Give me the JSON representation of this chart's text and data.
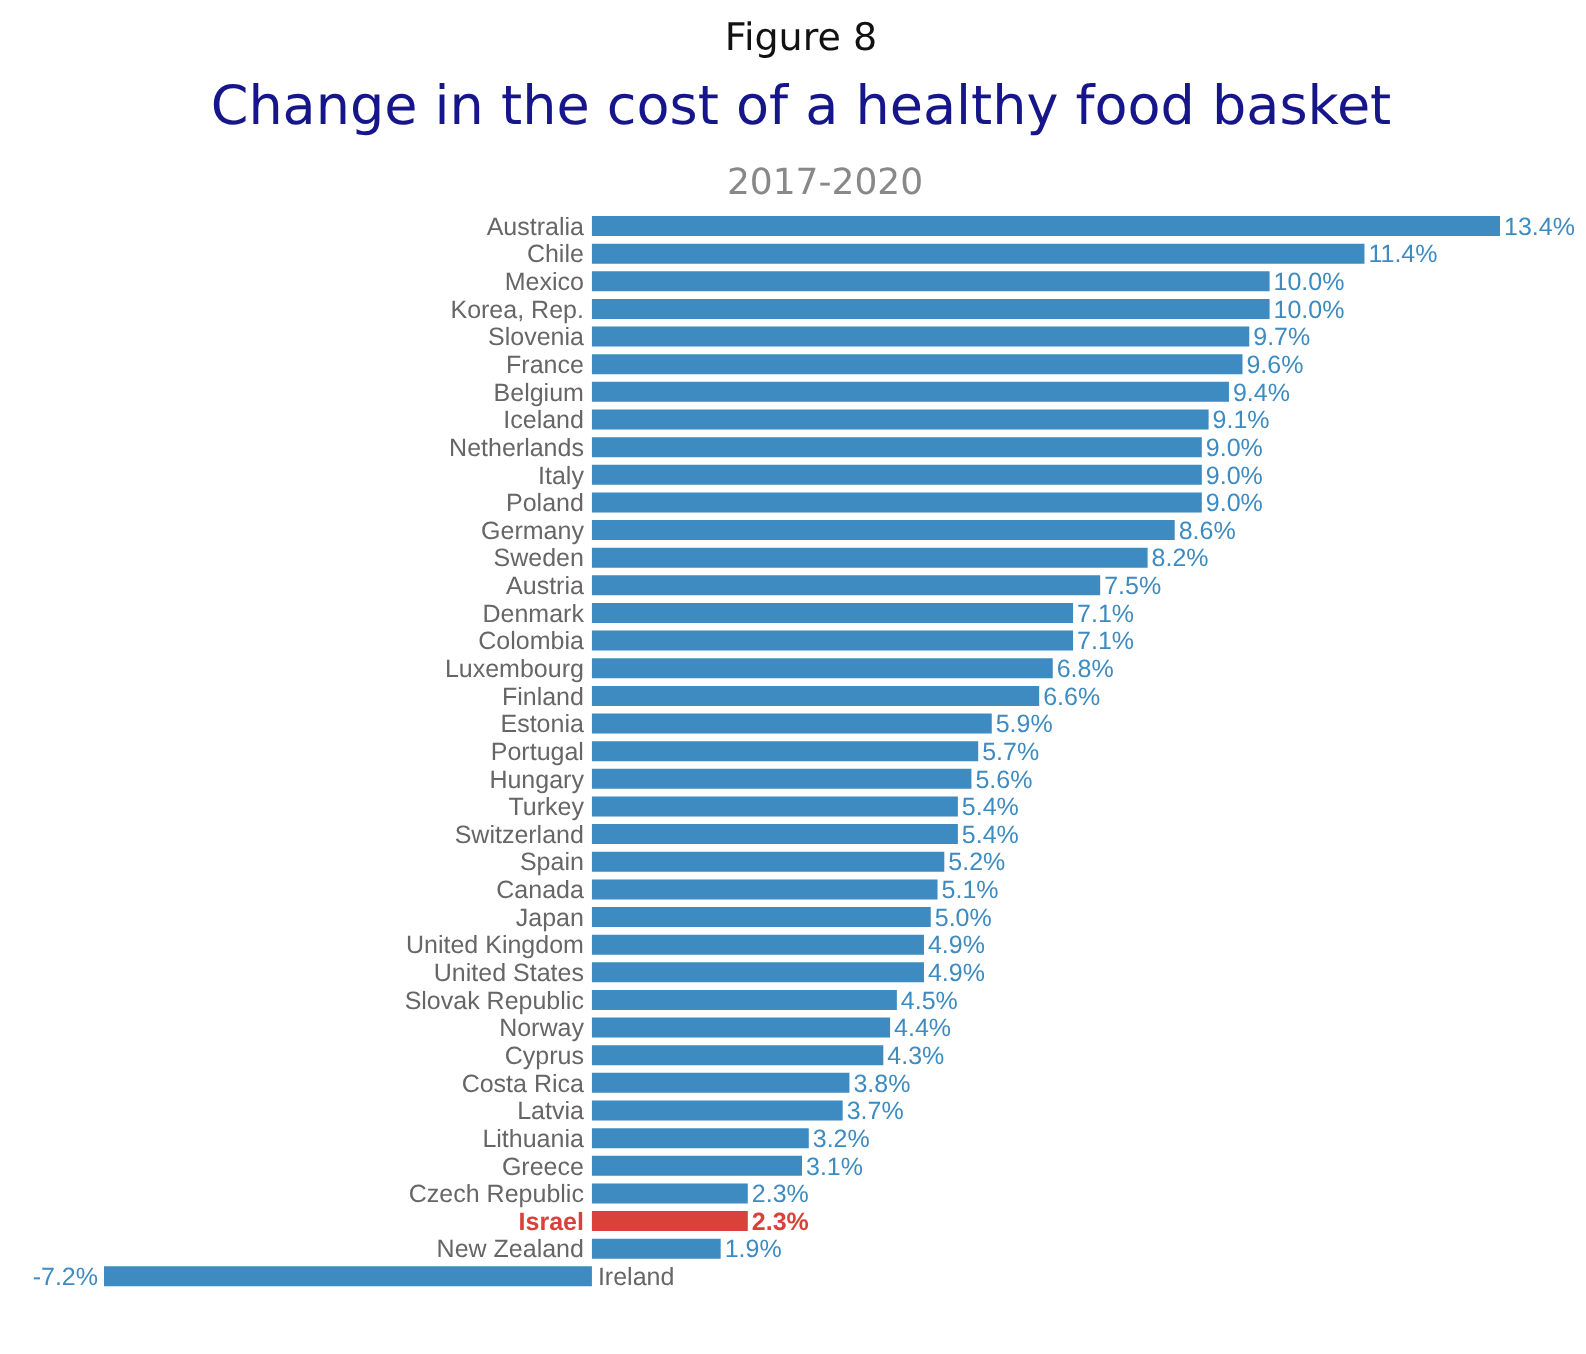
{
  "chart_data": {
    "type": "bar",
    "orientation": "horizontal",
    "title": "Change in the cost of a healthy food basket",
    "subtitle": "2017-2020",
    "annotations": [
      "Figure 8"
    ],
    "categories": [
      "Australia",
      "Chile",
      "Mexico",
      "Korea, Rep.",
      "Slovenia",
      "France",
      "Belgium",
      "Iceland",
      "Netherlands",
      "Italy",
      "Poland",
      "Germany",
      "Sweden",
      "Austria",
      "Denmark",
      "Colombia",
      "Luxembourg",
      "Finland",
      "Estonia",
      "Portugal",
      "Hungary",
      "Turkey",
      "Switzerland",
      "Spain",
      "Canada",
      "Japan",
      "United Kingdom",
      "United States",
      "Slovak Republic",
      "Norway",
      "Cyprus",
      "Costa Rica",
      "Latvia",
      "Lithuania",
      "Greece",
      "Czech Republic",
      "Israel",
      "New Zealand",
      "Ireland"
    ],
    "values": [
      13.4,
      11.4,
      10.0,
      10.0,
      9.7,
      9.6,
      9.4,
      9.1,
      9.0,
      9.0,
      9.0,
      8.6,
      8.2,
      7.5,
      7.1,
      7.1,
      6.8,
      6.6,
      5.9,
      5.7,
      5.6,
      5.4,
      5.4,
      5.2,
      5.1,
      5.0,
      4.9,
      4.9,
      4.5,
      4.4,
      4.3,
      3.8,
      3.7,
      3.2,
      3.1,
      2.3,
      2.3,
      1.9,
      -7.2
    ],
    "value_labels": [
      "13.4%",
      "11.4%",
      "10.0%",
      "10.0%",
      "9.7%",
      "9.6%",
      "9.4%",
      "9.1%",
      "9.0%",
      "9.0%",
      "9.0%",
      "8.6%",
      "8.2%",
      "7.5%",
      "7.1%",
      "7.1%",
      "6.8%",
      "6.6%",
      "5.9%",
      "5.7%",
      "5.6%",
      "5.4%",
      "5.4%",
      "5.2%",
      "5.1%",
      "5.0%",
      "4.9%",
      "4.9%",
      "4.5%",
      "4.4%",
      "4.3%",
      "3.8%",
      "3.7%",
      "3.2%",
      "3.1%",
      "2.3%",
      "2.3%",
      "1.9%",
      "-7.2%"
    ],
    "color": "#3d8bc0",
    "colors": [
      "#3d8bc0",
      "#3d8bc0",
      "#3d8bc0",
      "#3d8bc0",
      "#3d8bc0",
      "#3d8bc0",
      "#3d8bc0",
      "#3d8bc0",
      "#3d8bc0",
      "#3d8bc0",
      "#3d8bc0",
      "#3d8bc0",
      "#3d8bc0",
      "#3d8bc0",
      "#3d8bc0",
      "#3d8bc0",
      "#3d8bc0",
      "#3d8bc0",
      "#3d8bc0",
      "#3d8bc0",
      "#3d8bc0",
      "#3d8bc0",
      "#3d8bc0",
      "#3d8bc0",
      "#3d8bc0",
      "#3d8bc0",
      "#3d8bc0",
      "#3d8bc0",
      "#3d8bc0",
      "#3d8bc0",
      "#3d8bc0",
      "#3d8bc0",
      "#3d8bc0",
      "#3d8bc0",
      "#3d8bc0",
      "#3d8bc0",
      "#d9423a",
      "#3d8bc0",
      "#3d8bc0"
    ]
  }
}
